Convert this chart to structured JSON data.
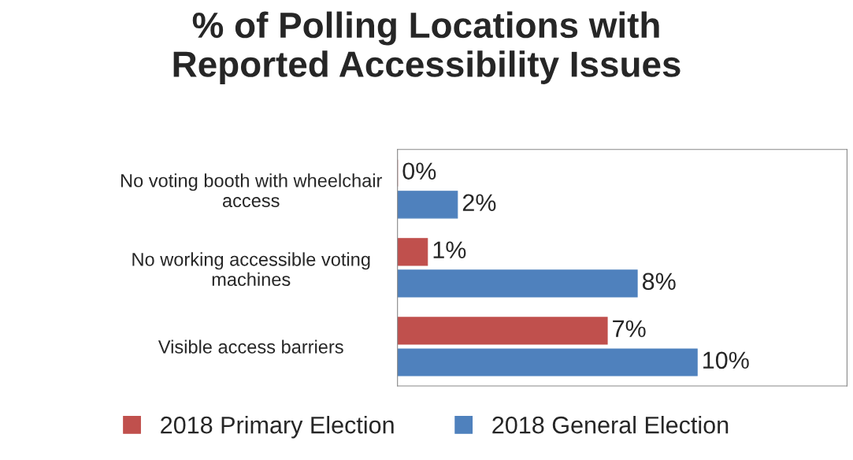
{
  "chart_data": {
    "type": "bar",
    "orientation": "horizontal",
    "title": "% of Polling Locations with\nReported Accessibility Issues",
    "categories": [
      "No voting booth with wheelchair\naccess",
      "No working accessible voting\nmachines",
      "Visible access barriers"
    ],
    "series": [
      {
        "name": "2018 Primary Election",
        "color": "#c0504d",
        "values": [
          0,
          1,
          7
        ],
        "value_labels": [
          "0%",
          "1%",
          "7%"
        ]
      },
      {
        "name": "2018 General Election",
        "color": "#4f81bd",
        "values": [
          2,
          8,
          10
        ],
        "value_labels": [
          "2%",
          "8%",
          "10%"
        ]
      }
    ],
    "xlim": [
      0,
      15
    ],
    "tick_labels": "y",
    "grid": false,
    "legend": "bottom"
  }
}
